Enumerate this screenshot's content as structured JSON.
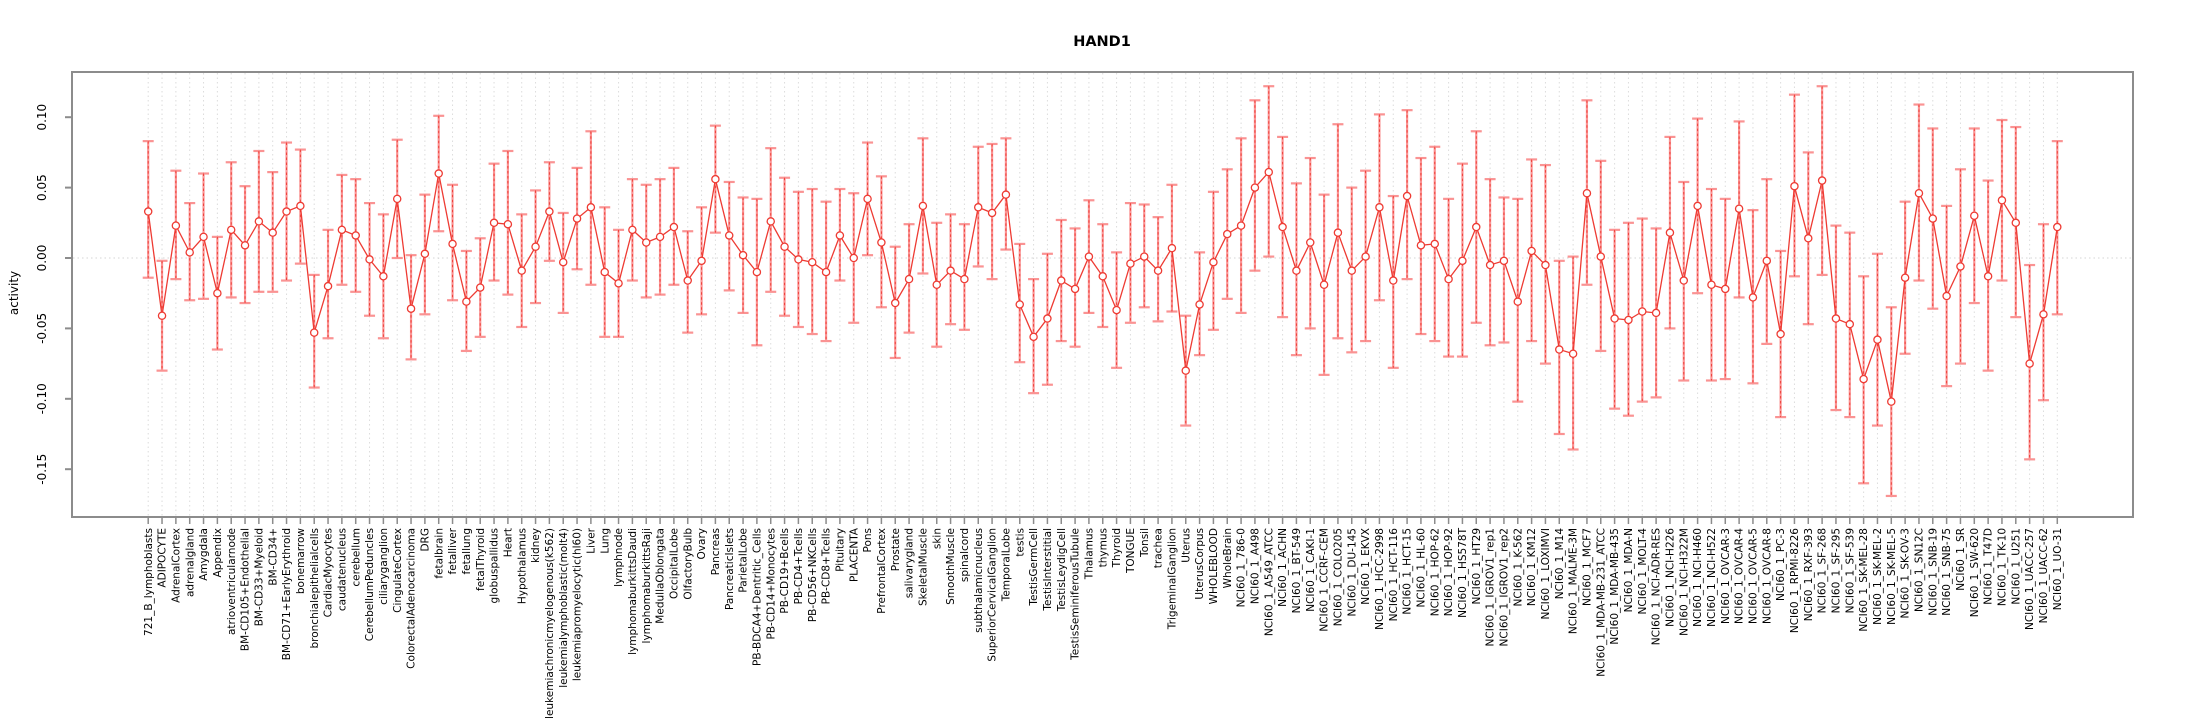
{
  "title": "HAND1",
  "y_axis": {
    "label": "activity",
    "tick_labels": [
      "0.10",
      "0.05",
      "0.00",
      "-0.05",
      "-0.10",
      "-0.15"
    ],
    "tick_values": [
      0.1,
      0.05,
      0.0,
      -0.05,
      -0.1,
      -0.15
    ]
  },
  "colors": {
    "point": "#ee3b33",
    "series_line": "#ee3b33",
    "error_bar": "#fa9393",
    "error_bar_center": "#ee3b33",
    "grid": "#dcdcdc",
    "zero_line": "#d4d4d4",
    "box": "#8c8c8c",
    "text": "#000000",
    "background": "#ffffff"
  },
  "chart_data": {
    "type": "line",
    "title": "HAND1",
    "xlabel": "",
    "ylabel": "activity",
    "ylim": [
      -0.18,
      0.13
    ],
    "grid": "vertical-dotted-per-category-plus-zero-line",
    "legend": "none",
    "error_bars": true,
    "categories": [
      "721_B_lymphoblasts",
      "ADIPOCYTE",
      "AdrenalCortex",
      "adrenalgland",
      "Amygdala",
      "Appendix",
      "atrioventricularnode",
      "BM-CD105+Endothelial",
      "BM-CD33+Myeloid",
      "BM-CD34+",
      "BM-CD71+EarlyErythroid",
      "bonemarrow",
      "bronchialepithelialcells",
      "CardiacMyocytes",
      "caudatenucleus",
      "cerebellum",
      "CerebellumPeduncles",
      "ciliaryganglion",
      "CingulateCortex",
      "ColorectalAdenocarcinoma",
      "DRG",
      "fetalbrain",
      "fetalliver",
      "fetallung",
      "fetalThyroid",
      "globuspallidus",
      "Heart",
      "Hypothalamus",
      "kidney",
      "leukemiachronicmyelogenous(k562)",
      "leukemialymphoblastic(molt4)",
      "leukemiapromyelocytic(hl60)",
      "Liver",
      "Lung",
      "lymphnode",
      "lymphomaburkittsDaudi",
      "lymphomaburkittsRaji",
      "MedullaOblongata",
      "OccipitalLobe",
      "OlfactoryBulb",
      "Ovary",
      "Pancreas",
      "PancreaticIslets",
      "ParietalLobe",
      "PB-BDCA4+Dentritic_Cells",
      "PB-CD14+Monocytes",
      "PB-CD19+Bcells",
      "PB-CD4+Tcells",
      "PB-CD56+NKCells",
      "PB-CD8+Tcells",
      "Pituitary",
      "PLACENTA",
      "Pons",
      "PrefrontalCortex",
      "Prostate",
      "salivarygland",
      "SkeletalMuscle",
      "skin",
      "SmoothMuscle",
      "spinalcord",
      "subthalamicnucleus",
      "SuperiorCervicalGanglion",
      "TemporalLobe",
      "testis",
      "TestisGermCell",
      "TestisInterstitial",
      "TestisLeydigCell",
      "TestisSeminiferousTubule",
      "Thalamus",
      "thymus",
      "Thyroid",
      "TONGUE",
      "Tonsil",
      "trachea",
      "TrigeminalGanglion",
      "Uterus",
      "UterusCorpus",
      "WHOLEBLOOD",
      "WholeBrain",
      "NCI60_1_786-0",
      "NCI60_1_A498",
      "NCI60_1_A549_ATCC",
      "NCI60_1_ACHN",
      "NCI60_1_BT-549",
      "NCI60_1_CAKI-1",
      "NCI60_1_CCRF-CEM",
      "NCI60_1_COLO205",
      "NCI60_1_DU-145",
      "NCI60_1_EKVX",
      "NCI60_1_HCC-2998",
      "NCI60_1_HCT-116",
      "NCI60_1_HCT-15",
      "NCI60_1_HL-60",
      "NCI60_1_HOP-62",
      "NCI60_1_HOP-92",
      "NCI60_1_HS578T",
      "NCI60_1_HT29",
      "NCI60_1_IGROV1_rep1",
      "NCI60_1_IGROV1_rep2",
      "NCI60_1_K-562",
      "NCI60_1_KM12",
      "NCI60_1_LOXIMVI",
      "NCI60_1_M14",
      "NCI60_1_MALME-3M",
      "NCI60_1_MCF7",
      "NCI60_1_MDA-MB-231_ATCC",
      "NCI60_1_MDA-MB-435",
      "NCI60_1_MDA-N",
      "NCI60_1_MOLT-4",
      "NCI60_1_NCI-ADR-RES",
      "NCI60_1_NCI-H226",
      "NCI60_1_NCI-H322M",
      "NCI60_1_NCI-H460",
      "NCI60_1_NCI-H522",
      "NCI60_1_OVCAR-3",
      "NCI60_1_OVCAR-4",
      "NCI60_1_OVCAR-5",
      "NCI60_1_OVCAR-8",
      "NCI60_1_PC-3",
      "NCI60_1_RPMI-8226",
      "NCI60_1_RXF-393",
      "NCI60_1_SF-268",
      "NCI60_1_SF-295",
      "NCI60_1_SF-539",
      "NCI60_1_SK-MEL-28",
      "NCI60_1_SK-MEL-2",
      "NCI60_1_SK-MEL-5",
      "NCI60_1_SK-OV-3",
      "NCI60_1_SN12C",
      "NCI60_1_SNB-19",
      "NCI60_1_SNB-75",
      "NCI60_1_SR",
      "NCI60_1_SW-620",
      "NCI60_1_T47D",
      "NCI60_1_TK-10",
      "NCI60_1_U251",
      "NCI60_1_UACC-257",
      "NCI60_1_UACC-62",
      "NCI60_1_UO-31"
    ],
    "series": [
      {
        "name": "activity",
        "values": [
          0.033,
          -0.041,
          0.023,
          0.004,
          0.015,
          -0.025,
          0.02,
          0.009,
          0.026,
          0.018,
          0.033,
          0.037,
          -0.053,
          -0.02,
          0.02,
          0.016,
          -0.001,
          -0.013,
          0.042,
          -0.036,
          0.003,
          0.06,
          0.01,
          -0.031,
          -0.021,
          0.025,
          0.024,
          -0.009,
          0.008,
          0.033,
          -0.003,
          0.028,
          0.036,
          -0.01,
          -0.018,
          0.02,
          0.011,
          0.015,
          0.022,
          -0.016,
          -0.002,
          0.056,
          0.016,
          0.002,
          -0.01,
          0.026,
          0.008,
          -0.001,
          -0.003,
          -0.01,
          0.016,
          0.0,
          0.042,
          0.011,
          -0.032,
          -0.015,
          0.037,
          -0.019,
          -0.009,
          -0.015,
          0.036,
          0.032,
          0.045,
          -0.033,
          -0.056,
          -0.043,
          -0.016,
          -0.022,
          0.001,
          -0.013,
          -0.037,
          -0.004,
          0.001,
          -0.009,
          0.007,
          -0.08,
          -0.033,
          -0.003,
          0.017,
          0.023,
          0.05,
          0.061,
          0.022,
          -0.009,
          0.011,
          -0.019,
          0.018,
          -0.009,
          0.001,
          0.036,
          -0.016,
          0.044,
          0.009,
          0.01,
          -0.015,
          -0.002,
          0.022,
          -0.005,
          -0.002,
          -0.031,
          0.005,
          -0.005,
          -0.065,
          -0.068,
          0.046,
          0.001,
          -0.043,
          -0.044,
          -0.038,
          -0.039,
          0.018,
          -0.016,
          0.037,
          -0.019,
          -0.022,
          0.035,
          -0.028,
          -0.002,
          -0.054,
          0.051,
          0.014,
          0.055,
          -0.043,
          -0.047,
          -0.086,
          -0.058,
          -0.102,
          -0.014,
          0.046,
          0.028,
          -0.027,
          -0.006,
          0.03,
          -0.013,
          0.041,
          0.025,
          -0.075,
          -0.04,
          0.022
        ],
        "ci_low": [
          -0.014,
          -0.08,
          -0.015,
          -0.03,
          -0.029,
          -0.065,
          -0.028,
          -0.032,
          -0.024,
          -0.024,
          -0.016,
          -0.004,
          -0.092,
          -0.057,
          -0.019,
          -0.024,
          -0.041,
          -0.057,
          0.0,
          -0.072,
          -0.04,
          0.019,
          -0.03,
          -0.066,
          -0.056,
          -0.016,
          -0.026,
          -0.049,
          -0.032,
          -0.002,
          -0.039,
          -0.008,
          -0.019,
          -0.056,
          -0.056,
          -0.016,
          -0.028,
          -0.026,
          -0.019,
          -0.053,
          -0.04,
          0.018,
          -0.023,
          -0.039,
          -0.062,
          -0.024,
          -0.041,
          -0.049,
          -0.054,
          -0.059,
          -0.016,
          -0.046,
          0.002,
          -0.035,
          -0.071,
          -0.053,
          -0.011,
          -0.063,
          -0.047,
          -0.051,
          -0.006,
          -0.015,
          0.006,
          -0.074,
          -0.096,
          -0.09,
          -0.059,
          -0.063,
          -0.039,
          -0.049,
          -0.078,
          -0.046,
          -0.035,
          -0.045,
          -0.038,
          -0.119,
          -0.069,
          -0.051,
          -0.029,
          -0.039,
          -0.009,
          0.001,
          -0.042,
          -0.069,
          -0.05,
          -0.083,
          -0.057,
          -0.067,
          -0.059,
          -0.03,
          -0.078,
          -0.015,
          -0.054,
          -0.059,
          -0.07,
          -0.07,
          -0.046,
          -0.062,
          -0.06,
          -0.102,
          -0.059,
          -0.075,
          -0.125,
          -0.136,
          -0.019,
          -0.066,
          -0.107,
          -0.112,
          -0.102,
          -0.099,
          -0.05,
          -0.087,
          -0.025,
          -0.087,
          -0.086,
          -0.028,
          -0.089,
          -0.061,
          -0.113,
          -0.013,
          -0.047,
          -0.012,
          -0.108,
          -0.113,
          -0.16,
          -0.119,
          -0.169,
          -0.068,
          -0.016,
          -0.036,
          -0.091,
          -0.075,
          -0.032,
          -0.08,
          -0.016,
          -0.042,
          -0.143,
          -0.101,
          -0.04
        ],
        "ci_high": [
          0.083,
          -0.002,
          0.062,
          0.039,
          0.06,
          0.015,
          0.068,
          0.051,
          0.076,
          0.061,
          0.082,
          0.077,
          -0.012,
          0.02,
          0.059,
          0.056,
          0.039,
          0.031,
          0.084,
          0.002,
          0.045,
          0.101,
          0.052,
          0.005,
          0.014,
          0.067,
          0.076,
          0.031,
          0.048,
          0.068,
          0.032,
          0.064,
          0.09,
          0.036,
          0.02,
          0.056,
          0.052,
          0.056,
          0.064,
          0.019,
          0.036,
          0.094,
          0.054,
          0.043,
          0.042,
          0.078,
          0.057,
          0.047,
          0.049,
          0.04,
          0.049,
          0.046,
          0.082,
          0.058,
          0.008,
          0.024,
          0.085,
          0.025,
          0.031,
          0.024,
          0.079,
          0.081,
          0.085,
          0.01,
          -0.015,
          0.003,
          0.027,
          0.021,
          0.041,
          0.024,
          0.004,
          0.039,
          0.038,
          0.029,
          0.052,
          -0.041,
          0.004,
          0.047,
          0.063,
          0.085,
          0.112,
          0.122,
          0.086,
          0.053,
          0.071,
          0.045,
          0.095,
          0.05,
          0.062,
          0.102,
          0.044,
          0.105,
          0.071,
          0.079,
          0.042,
          0.067,
          0.09,
          0.056,
          0.043,
          0.042,
          0.07,
          0.066,
          -0.002,
          0.001,
          0.112,
          0.069,
          0.02,
          0.025,
          0.028,
          0.021,
          0.086,
          0.054,
          0.099,
          0.049,
          0.042,
          0.097,
          0.034,
          0.056,
          0.005,
          0.116,
          0.075,
          0.122,
          0.023,
          0.018,
          -0.013,
          0.003,
          -0.035,
          0.04,
          0.109,
          0.092,
          0.037,
          0.063,
          0.092,
          0.055,
          0.098,
          0.093,
          -0.005,
          0.024,
          0.083
        ]
      }
    ]
  }
}
